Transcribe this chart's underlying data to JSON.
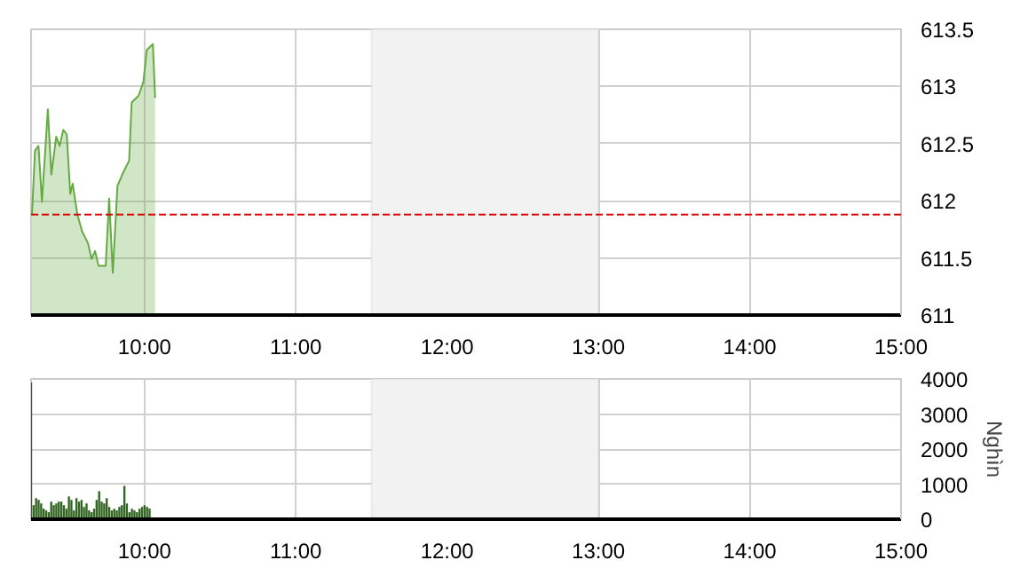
{
  "chart_data": [
    {
      "type": "area",
      "x": [
        9.256,
        9.276,
        9.299,
        9.322,
        9.361,
        9.384,
        9.416,
        9.439,
        9.463,
        9.486,
        9.509,
        9.525,
        9.556,
        9.588,
        9.626,
        9.65,
        9.673,
        9.696,
        9.743,
        9.766,
        9.79,
        9.821,
        9.86,
        9.898,
        9.915,
        9.961,
        9.992,
        10.015,
        10.055,
        10.07
      ],
      "series": [
        {
          "color": "#66aa44",
          "values": [
            611.88,
            612.44,
            612.48,
            611.99,
            612.8,
            612.23,
            612.56,
            612.48,
            612.62,
            612.58,
            612.06,
            612.15,
            611.88,
            611.73,
            611.63,
            611.49,
            611.56,
            611.43,
            611.43,
            612.02,
            611.37,
            612.13,
            612.25,
            612.35,
            612.86,
            612.92,
            613.04,
            613.32,
            613.37,
            612.9
          ]
        }
      ],
      "xlim": [
        9.25,
        15
      ],
      "xticks": [
        {
          "value": 10,
          "label": "10:00"
        },
        {
          "value": 11,
          "label": "11:00"
        },
        {
          "value": 12,
          "label": "12:00"
        },
        {
          "value": 13,
          "label": "13:00"
        },
        {
          "value": 14,
          "label": "14:00"
        },
        {
          "value": 15,
          "label": "15:00"
        }
      ],
      "ylim": [
        611,
        613.5
      ],
      "yticks": [
        611,
        611.5,
        612,
        612.5,
        613,
        613.5
      ],
      "grid": true,
      "ref_lines": [
        {
          "axis": "y",
          "value": 611.88,
          "color": "#dd0000",
          "line_style": "dashed"
        }
      ],
      "bands": [
        {
          "axis": "x",
          "from": 11.5,
          "to": 13,
          "color": "#f2f2f2"
        }
      ]
    },
    {
      "type": "bar",
      "ylabel": "Nghìn",
      "x": [
        9.25,
        9.2667,
        9.2833,
        9.3,
        9.3167,
        9.3333,
        9.35,
        9.3667,
        9.3833,
        9.4,
        9.4167,
        9.4333,
        9.45,
        9.4667,
        9.4833,
        9.5,
        9.5167,
        9.5333,
        9.55,
        9.5667,
        9.5833,
        9.6,
        9.6167,
        9.6333,
        9.65,
        9.6667,
        9.6833,
        9.7,
        9.7167,
        9.7333,
        9.75,
        9.7667,
        9.7833,
        9.8,
        9.8167,
        9.8333,
        9.85,
        9.8667,
        9.8833,
        9.9,
        9.9167,
        9.9333,
        9.95,
        9.9667,
        9.9833,
        10.0,
        10.0167,
        10.0333
      ],
      "series": [
        {
          "color": "#336622",
          "values": [
            3900,
            400,
            600,
            550,
            450,
            300,
            250,
            200,
            500,
            400,
            450,
            500,
            500,
            400,
            300,
            650,
            550,
            250,
            600,
            500,
            550,
            350,
            450,
            250,
            200,
            300,
            550,
            800,
            500,
            450,
            600,
            350,
            250,
            300,
            250,
            350,
            400,
            950,
            450,
            200,
            300,
            250,
            200,
            300,
            350,
            400,
            350,
            300
          ]
        }
      ],
      "xlim": [
        9.25,
        15
      ],
      "xticks": [
        {
          "value": 10,
          "label": "10:00"
        },
        {
          "value": 11,
          "label": "11:00"
        },
        {
          "value": 12,
          "label": "12:00"
        },
        {
          "value": 13,
          "label": "13:00"
        },
        {
          "value": 14,
          "label": "14:00"
        },
        {
          "value": 15,
          "label": "15:00"
        }
      ],
      "ylim": [
        0,
        4000
      ],
      "yticks": [
        0,
        1000,
        2000,
        3000,
        4000
      ],
      "grid": true,
      "bands": [
        {
          "axis": "x",
          "from": 11.5,
          "to": 13,
          "color": "#f2f2f2"
        }
      ]
    }
  ]
}
